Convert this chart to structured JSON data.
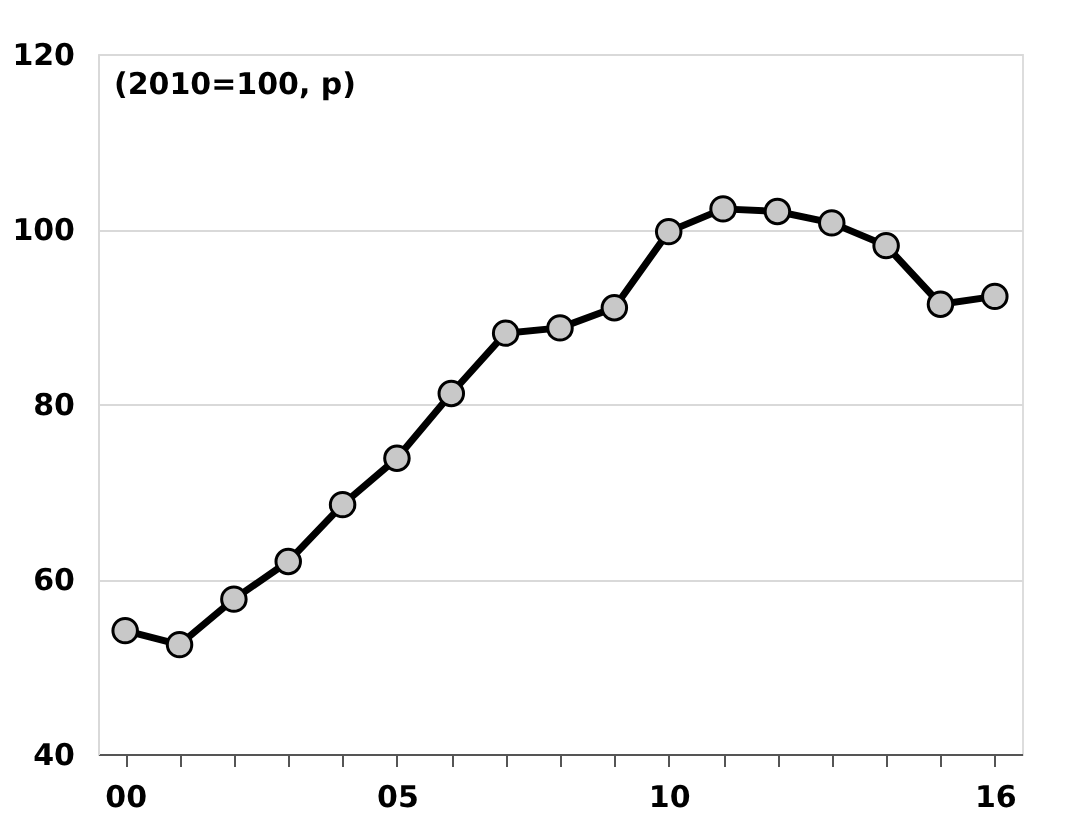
{
  "chart_data": {
    "type": "line",
    "categories": [
      "00",
      null,
      null,
      null,
      null,
      "05",
      null,
      null,
      null,
      null,
      "10",
      null,
      null,
      null,
      null,
      null,
      "16"
    ],
    "series": [
      {
        "color": "#000000",
        "values": [
          54.1,
          52.5,
          57.7,
          62,
          68.5,
          73.8,
          81.2,
          88.1,
          88.7,
          91,
          99.7,
          102.3,
          102,
          100.7,
          98.1,
          91.4,
          92.3
        ]
      }
    ],
    "ylim": [
      40,
      120
    ],
    "yticks": [
      40,
      60,
      80,
      100,
      120
    ],
    "grid": "y",
    "marker": "circle",
    "line_style": "solid",
    "annotations": [
      "(2010=100, p)"
    ]
  }
}
